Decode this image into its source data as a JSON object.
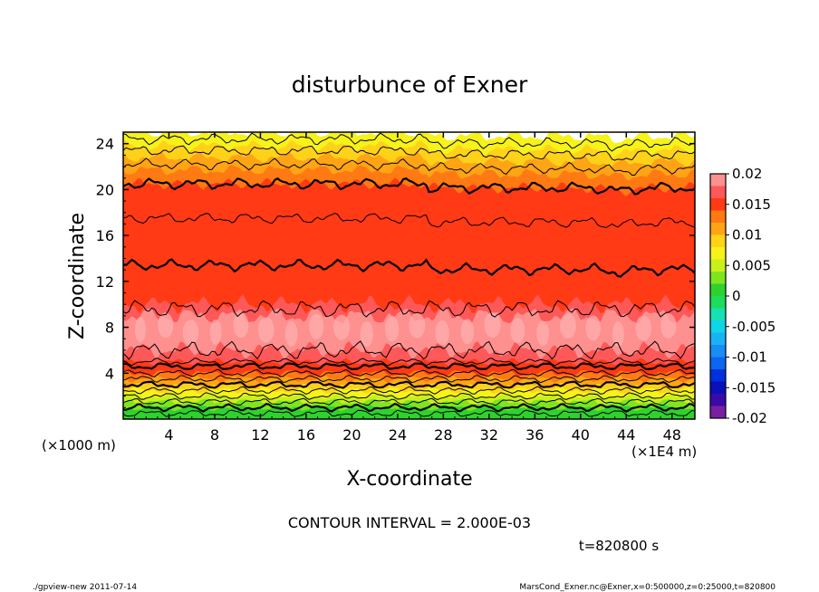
{
  "chart_data": {
    "type": "contour",
    "title": "disturbunce of Exner",
    "xlabel": "X-coordinate",
    "ylabel": "Z-coordinate",
    "x_unit": "(×1E4 m)",
    "y_unit": "(×1000 m)",
    "xlim": [
      0,
      50
    ],
    "ylim": [
      0,
      25
    ],
    "x_ticks": [
      "4",
      "8",
      "12",
      "16",
      "20",
      "24",
      "28",
      "32",
      "36",
      "40",
      "44",
      "48"
    ],
    "y_ticks": [
      "4",
      "8",
      "12",
      "16",
      "20",
      "24"
    ],
    "colorbar_labels": [
      "0.02",
      "0.015",
      "0.01",
      "0.005",
      "0",
      "-0.005",
      "-0.01",
      "-0.015",
      "-0.02"
    ],
    "contour_interval_text": "CONTOUR INTERVAL = 2.000E-03",
    "time_text": "t=820800 s",
    "footer_left": "./gpview-new  2011-07-14",
    "footer_right": "MarsCond_Exner.nc@Exner,x=0:500000,z=0:25000,t=820800",
    "colorbar": {
      "min": -0.02,
      "max": 0.02,
      "levels": [
        {
          "from": -0.02,
          "to": -0.018,
          "color": "#7b1fa2"
        },
        {
          "from": -0.018,
          "to": -0.016,
          "color": "#3a0aa8"
        },
        {
          "from": -0.016,
          "to": -0.014,
          "color": "#0a10b8"
        },
        {
          "from": -0.014,
          "to": -0.012,
          "color": "#0030dd"
        },
        {
          "from": -0.012,
          "to": -0.01,
          "color": "#0c66ef"
        },
        {
          "from": -0.01,
          "to": -0.008,
          "color": "#1a8cf5"
        },
        {
          "from": -0.008,
          "to": -0.006,
          "color": "#19b3f5"
        },
        {
          "from": -0.006,
          "to": -0.004,
          "color": "#10d4e8"
        },
        {
          "from": -0.004,
          "to": -0.002,
          "color": "#16e0b4"
        },
        {
          "from": -0.002,
          "to": 0.0,
          "color": "#1edc5c"
        },
        {
          "from": 0.0,
          "to": 0.002,
          "color": "#2ed22e"
        },
        {
          "from": 0.002,
          "to": 0.004,
          "color": "#7ee51f"
        },
        {
          "from": 0.004,
          "to": 0.006,
          "color": "#caf01c"
        },
        {
          "from": 0.006,
          "to": 0.008,
          "color": "#f6f21a"
        },
        {
          "from": 0.008,
          "to": 0.01,
          "color": "#ffd21a"
        },
        {
          "from": 0.01,
          "to": 0.012,
          "color": "#ffa414"
        },
        {
          "from": 0.012,
          "to": 0.014,
          "color": "#ff7a12"
        },
        {
          "from": 0.014,
          "to": 0.016,
          "color": "#ff3a14"
        },
        {
          "from": 0.016,
          "to": 0.018,
          "color": "#ff5858"
        },
        {
          "from": 0.018,
          "to": 0.02,
          "color": "#ff9090"
        }
      ]
    },
    "field_bands": [
      {
        "z_top": 1.0,
        "color": "#2ed22e"
      },
      {
        "z_top": 1.5,
        "color": "#7ee51f"
      },
      {
        "z_top": 2.0,
        "color": "#caf01c"
      },
      {
        "z_top": 2.5,
        "color": "#f6f21a"
      },
      {
        "z_top": 3.0,
        "color": "#ffd21a"
      },
      {
        "z_top": 3.5,
        "color": "#ffa414"
      },
      {
        "z_top": 4.0,
        "color": "#ff7a12"
      },
      {
        "z_top": 5.0,
        "color": "#ff3a14"
      },
      {
        "z_top": 6.0,
        "color": "#ff5858"
      },
      {
        "z_top": 9.0,
        "color": "#ff9090"
      },
      {
        "z_top": 10.0,
        "color": "#ff5858"
      },
      {
        "z_top": 13.5,
        "color": "#ff3a14"
      },
      {
        "z_top": 17.0,
        "color": "#ff3a14"
      },
      {
        "z_top": 20.5,
        "color": "#ff3a14"
      },
      {
        "z_top": 21.7,
        "color": "#ff7a12"
      },
      {
        "z_top": 22.8,
        "color": "#ffa414"
      },
      {
        "z_top": 23.8,
        "color": "#ffd21a"
      },
      {
        "z_top": 25.0,
        "color": "#f6f21a"
      }
    ],
    "contour_lines_z": [
      {
        "z": 0.5,
        "bold": false
      },
      {
        "z": 1.0,
        "bold": true
      },
      {
        "z": 1.5,
        "bold": false
      },
      {
        "z": 2.0,
        "bold": false
      },
      {
        "z": 2.5,
        "bold": false
      },
      {
        "z": 3.0,
        "bold": true
      },
      {
        "z": 3.5,
        "bold": false
      },
      {
        "z": 4.0,
        "bold": false
      },
      {
        "z": 4.6,
        "bold": true
      },
      {
        "z": 5.0,
        "bold": false
      },
      {
        "z": 6.0,
        "bold": false
      },
      {
        "z": 9.6,
        "bold": false
      },
      {
        "z": 13.4,
        "bold": true
      },
      {
        "z": 17.5,
        "bold": false
      },
      {
        "z": 20.5,
        "bold": true
      },
      {
        "z": 22.2,
        "bold": false
      },
      {
        "z": 23.4,
        "bold": false
      },
      {
        "z": 24.4,
        "bold": false
      }
    ]
  }
}
